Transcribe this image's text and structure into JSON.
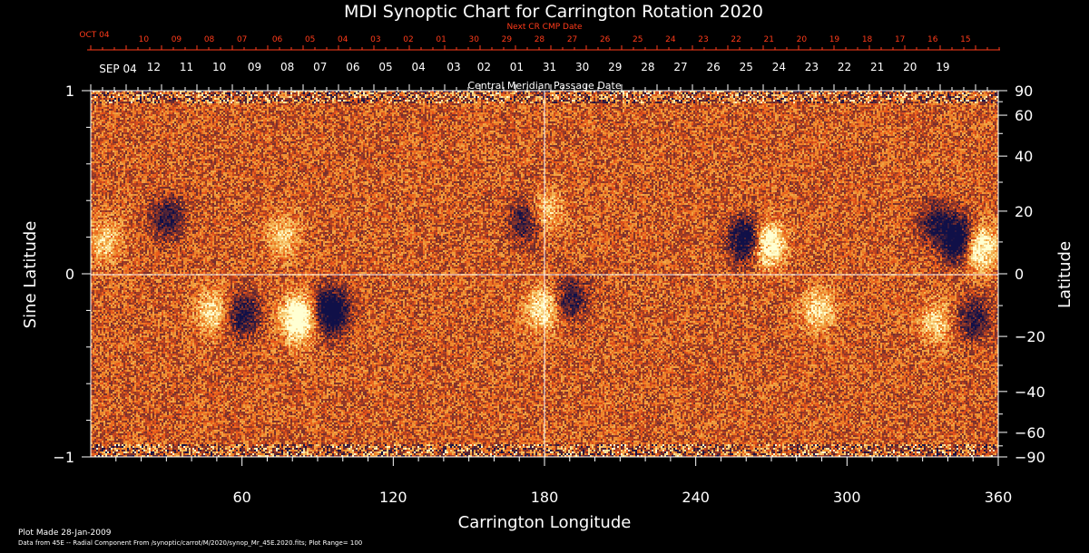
{
  "chart_data": {
    "type": "heatmap",
    "title": "MDI Synoptic Chart for Carrington Rotation 2020",
    "xlabel": "Carrington Longitude",
    "ylabel_left": "Sine Latitude",
    "ylabel_right": "Latitude",
    "xlim": [
      0,
      360
    ],
    "ylim": [
      -1,
      1
    ],
    "x_ticks": [
      60,
      120,
      180,
      240,
      300,
      360
    ],
    "x_tick_labels": [
      "60",
      "120",
      "180",
      "240",
      "300",
      "360"
    ],
    "y_left_ticks": [
      1,
      0,
      -1
    ],
    "y_left_tick_labels": [
      "1",
      "0",
      "−1"
    ],
    "y_right_ticks": [
      90,
      60,
      40,
      20,
      0,
      -20,
      -40,
      -60,
      -90
    ],
    "y_right_tick_labels": [
      "90",
      "60",
      "40",
      "20",
      "0",
      "−20",
      "−40",
      "−60",
      "−90"
    ],
    "top_axis": {
      "caption": "Central Meridian Passage Date",
      "first_label": "SEP 04",
      "dates": [
        "12",
        "11",
        "10",
        "09",
        "08",
        "07",
        "06",
        "05",
        "04",
        "03",
        "02",
        "01",
        "31",
        "30",
        "29",
        "28",
        "27",
        "26",
        "25",
        "24",
        "23",
        "22",
        "21",
        "20",
        "19"
      ],
      "date_longitudes": [
        25,
        38,
        51,
        65,
        78,
        91,
        104,
        117,
        130,
        144,
        156,
        169,
        182,
        195,
        208,
        221,
        234,
        247,
        260,
        273,
        286,
        299,
        312,
        325,
        338
      ]
    },
    "next_cr_axis": {
      "caption": "Next CR CMP Date",
      "first_label": "OCT 04",
      "dates": [
        "10",
        "09",
        "08",
        "07",
        "06",
        "05",
        "04",
        "03",
        "02",
        "01",
        "30",
        "29",
        "28",
        "27",
        "26",
        "25",
        "24",
        "23",
        "22",
        "21",
        "20",
        "19",
        "18",
        "17",
        "16",
        "15"
      ],
      "date_longitudes": [
        21,
        34,
        47,
        60,
        74,
        87,
        100,
        113,
        126,
        139,
        152,
        165,
        178,
        191,
        204,
        217,
        230,
        243,
        256,
        269,
        282,
        295,
        308,
        321,
        334,
        347
      ]
    },
    "colors": {
      "background": "#000000",
      "field_base": "#e8521c",
      "positive_polarity": "#ffffd8",
      "negative_polarity": "#101048",
      "next_cr_text": "#ff3b1a",
      "axis": "#ffffff"
    },
    "active_regions": [
      {
        "lon": 82,
        "sinlat": -0.24,
        "polarity": "positive",
        "strength": 1.0
      },
      {
        "lon": 95,
        "sinlat": -0.2,
        "polarity": "negative",
        "strength": 1.0
      },
      {
        "lon": 60,
        "sinlat": -0.22,
        "polarity": "negative",
        "strength": 0.6
      },
      {
        "lon": 48,
        "sinlat": -0.2,
        "polarity": "positive",
        "strength": 0.5
      },
      {
        "lon": 30,
        "sinlat": 0.31,
        "polarity": "negative",
        "strength": 0.5
      },
      {
        "lon": 76,
        "sinlat": 0.21,
        "polarity": "positive",
        "strength": 0.4
      },
      {
        "lon": 179,
        "sinlat": -0.19,
        "polarity": "positive",
        "strength": 0.6
      },
      {
        "lon": 190,
        "sinlat": -0.13,
        "polarity": "negative",
        "strength": 0.5
      },
      {
        "lon": 172,
        "sinlat": 0.29,
        "polarity": "negative",
        "strength": 0.5
      },
      {
        "lon": 180,
        "sinlat": 0.34,
        "polarity": "positive",
        "strength": 0.4
      },
      {
        "lon": 260,
        "sinlat": 0.19,
        "polarity": "negative",
        "strength": 0.9
      },
      {
        "lon": 268,
        "sinlat": 0.17,
        "polarity": "positive",
        "strength": 0.9
      },
      {
        "lon": 344,
        "sinlat": 0.19,
        "polarity": "negative",
        "strength": 1.0
      },
      {
        "lon": 352,
        "sinlat": 0.15,
        "polarity": "positive",
        "strength": 0.9
      },
      {
        "lon": 335,
        "sinlat": 0.28,
        "polarity": "negative",
        "strength": 0.5
      },
      {
        "lon": 288,
        "sinlat": -0.19,
        "polarity": "positive",
        "strength": 0.5
      },
      {
        "lon": 350,
        "sinlat": -0.24,
        "polarity": "negative",
        "strength": 0.5
      },
      {
        "lon": 335,
        "sinlat": -0.26,
        "polarity": "positive",
        "strength": 0.4
      },
      {
        "lon": 5,
        "sinlat": 0.18,
        "polarity": "positive",
        "strength": 0.4
      }
    ]
  },
  "footer": {
    "plot_made": "Plot Made 28-Jan-2009",
    "data_source": "Data from 45E -- Radial Component From /synoptic/carrot/M/2020/synop_Mr_45E.2020.fits; Plot Range=  100"
  }
}
